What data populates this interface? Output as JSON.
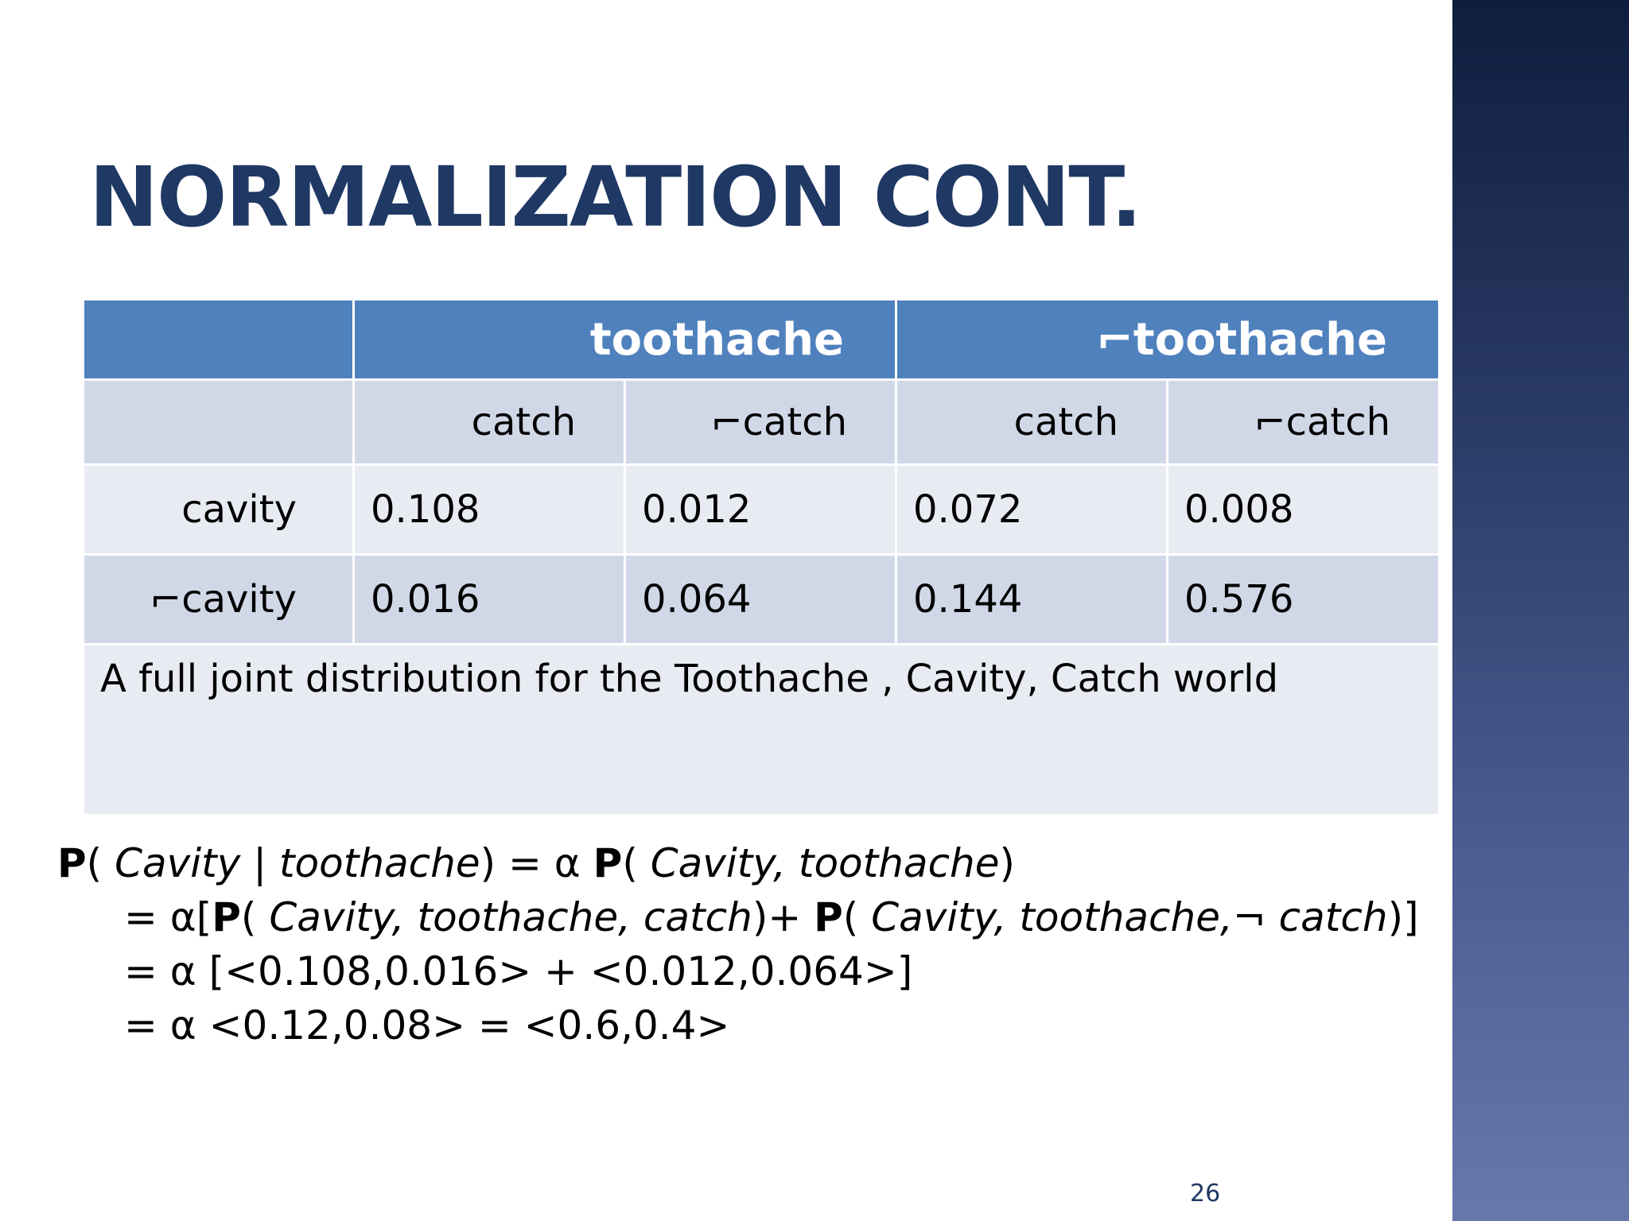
{
  "slide": {
    "title": "NORMALIZATION CONT.",
    "page_number": "26"
  },
  "table": {
    "header": [
      "toothache",
      "⌐toothache"
    ],
    "subheader": [
      "catch",
      "⌐catch",
      "catch",
      "⌐catch"
    ],
    "rows": [
      {
        "label": "cavity",
        "values": [
          "0.108",
          "0.012",
          "0.072",
          "0.008"
        ]
      },
      {
        "label": "⌐cavity",
        "values": [
          "0.016",
          "0.064",
          "0.144",
          "0.576"
        ]
      }
    ],
    "caption": "A full joint distribution for the Toothache , Cavity, Catch world"
  },
  "formula": {
    "line1": {
      "p1": "P",
      "open1": "( ",
      "var_cavity1": "Cavity",
      "bar": " | ",
      "var_toothache1": "toothache",
      "close1": ") = α ",
      "p2": "P",
      "open2": "( ",
      "vars2": "Cavity, toothache",
      "close2": ")"
    },
    "line2": {
      "prefix": "= α[",
      "p1": "P",
      "open1": "( ",
      "vars1": "Cavity, toothache, catch",
      "mid": ")+ ",
      "p2": "P",
      "open2": "( ",
      "vars2a": "Cavity, toothache,",
      "neg": "¬ ",
      "vars2b": "catch",
      "close": ")]"
    },
    "line3": "= α [<0.108,0.016> + <0.012,0.064>]",
    "line4": "= α <0.12,0.08> = <0.6,0.4>"
  },
  "colors": {
    "title": "#1f3864",
    "table_header": "#4f81bd",
    "table_band_dark": "#d0d8e8",
    "table_band_light": "#e9ebf2",
    "side_band_top": "#0f1e3e",
    "side_band_bottom": "#6679ad"
  }
}
